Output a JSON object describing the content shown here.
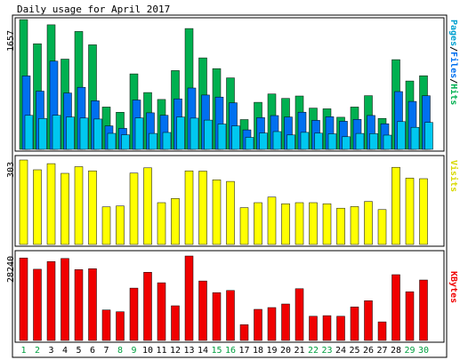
{
  "title": "Daily usage for April 2017",
  "colors": {
    "background": "#ffffff",
    "panel_border": "#000000",
    "hits": "#00b050",
    "files": "#0070f0",
    "pages": "#00c8f0",
    "visits": "#ffff00",
    "kbytes": "#f00000",
    "weekday_label": "#000000",
    "weekend_label": "#00a040",
    "files_label": "#0070f0",
    "pages_label": "#00a0d0"
  },
  "chart_data": [
    {
      "type": "bar",
      "panel": "pages-files-hits",
      "title": "Daily usage for April 2017",
      "ymax_label": "1657",
      "legend": [
        "Pages",
        "Files",
        "Hits"
      ],
      "categories": [
        "1",
        "2",
        "3",
        "4",
        "5",
        "6",
        "7",
        "8",
        "9",
        "10",
        "11",
        "12",
        "13",
        "14",
        "15",
        "16",
        "17",
        "18",
        "19",
        "20",
        "21",
        "22",
        "23",
        "24",
        "25",
        "26",
        "27",
        "28",
        "29",
        "30"
      ],
      "weekend_days": [
        "1",
        "2",
        "8",
        "9",
        "15",
        "16",
        "22",
        "23",
        "29",
        "30"
      ],
      "ylim": [
        0,
        1657
      ],
      "series": [
        {
          "name": "Hits",
          "values": [
            1657,
            1348,
            1590,
            1152,
            1505,
            1335,
            540,
            473,
            963,
            725,
            637,
            1005,
            1542,
            1168,
            1030,
            913,
            380,
            600,
            707,
            650,
            681,
            527,
            518,
            410,
            540,
            686,
            395,
            1145,
            873,
            940
          ]
        },
        {
          "name": "Files",
          "values": [
            937,
            743,
            1126,
            720,
            792,
            620,
            300,
            268,
            630,
            466,
            435,
            645,
            783,
            693,
            667,
            595,
            248,
            405,
            431,
            413,
            474,
            370,
            417,
            359,
            383,
            432,
            327,
            738,
            612,
            684
          ]
        },
        {
          "name": "Pages",
          "values": [
            434,
            394,
            435,
            413,
            399,
            387,
            204,
            186,
            402,
            203,
            216,
            413,
            398,
            373,
            323,
            300,
            153,
            209,
            227,
            184,
            217,
            206,
            199,
            161,
            203,
            201,
            182,
            354,
            282,
            344
          ]
        }
      ]
    },
    {
      "type": "bar",
      "panel": "visits",
      "ymax_label": "303",
      "legend": [
        "Visits"
      ],
      "categories": [
        "1",
        "2",
        "3",
        "4",
        "5",
        "6",
        "7",
        "8",
        "9",
        "10",
        "11",
        "12",
        "13",
        "14",
        "15",
        "16",
        "17",
        "18",
        "19",
        "20",
        "21",
        "22",
        "23",
        "24",
        "25",
        "26",
        "27",
        "28",
        "29",
        "30"
      ],
      "ylim": [
        0,
        303
      ],
      "series": [
        {
          "name": "Visits",
          "values": [
            303,
            268,
            290,
            255,
            279,
            264,
            135,
            138,
            256,
            275,
            150,
            165,
            264,
            263,
            232,
            226,
            132,
            150,
            170,
            146,
            150,
            150,
            146,
            130,
            136,
            154,
            125,
            277,
            238,
            236
          ]
        }
      ]
    },
    {
      "type": "bar",
      "panel": "kbytes",
      "ymax_label": "28240",
      "legend": [
        "KBytes"
      ],
      "categories": [
        "1",
        "2",
        "3",
        "4",
        "5",
        "6",
        "7",
        "8",
        "9",
        "10",
        "11",
        "12",
        "13",
        "14",
        "15",
        "16",
        "17",
        "18",
        "19",
        "20",
        "21",
        "22",
        "23",
        "24",
        "25",
        "26",
        "27",
        "28",
        "29",
        "30"
      ],
      "ylim": [
        0,
        28240
      ],
      "series": [
        {
          "name": "KBytes",
          "values": [
            27600,
            23800,
            26400,
            27400,
            23700,
            24000,
            10200,
            9600,
            17500,
            22800,
            19300,
            11600,
            28240,
            19900,
            16000,
            16700,
            5300,
            10400,
            11000,
            12200,
            17300,
            8100,
            8300,
            8100,
            11200,
            13300,
            6200,
            22000,
            16300,
            20200
          ]
        }
      ]
    }
  ]
}
